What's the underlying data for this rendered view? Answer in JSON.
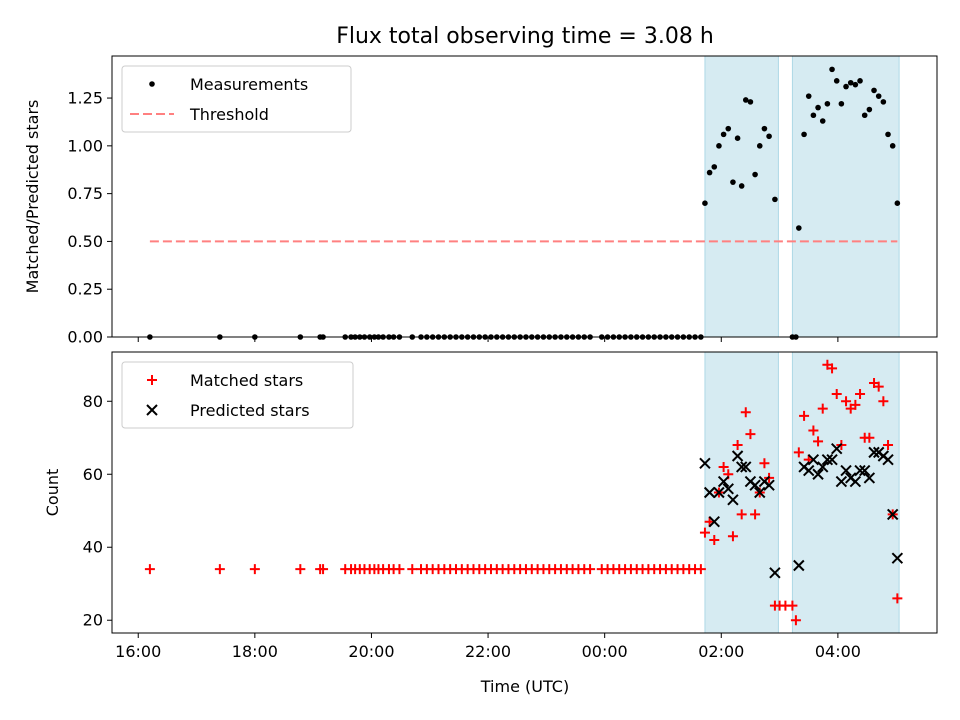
{
  "figure": {
    "title": "Flux total observing time = 3.08 h",
    "xlabel": "Time (UTC)",
    "x_tick_labels": [
      "16:00",
      "18:00",
      "20:00",
      "22:00",
      "00:00",
      "02:00",
      "04:00"
    ],
    "x_tick_values": [
      16,
      18,
      20,
      22,
      24,
      26,
      28
    ],
    "xlim": [
      15.55,
      29.7
    ],
    "shaded_intervals": [
      [
        25.72,
        26.98
      ],
      [
        27.22,
        29.05
      ]
    ],
    "shade_color": "#add8e6"
  },
  "chart_data": [
    {
      "type": "scatter",
      "ylabel": "Matched/Predicted stars",
      "ylim": [
        0,
        1.47
      ],
      "y_tick_values": [
        0,
        0.25,
        0.5,
        0.75,
        1.0,
        1.25
      ],
      "y_tick_labels": [
        "0.00",
        "0.25",
        "0.50",
        "0.75",
        "1.00",
        "1.25"
      ],
      "grid": false,
      "legend_position": "top-left",
      "series": [
        {
          "name": "Measurements",
          "marker": "dot",
          "color": "#000000",
          "points": [
            [
              16.2,
              0
            ],
            [
              17.4,
              0
            ],
            [
              18.0,
              0
            ],
            [
              18.78,
              0
            ],
            [
              19.12,
              0
            ],
            [
              19.17,
              0
            ],
            [
              19.55,
              0
            ],
            [
              19.65,
              0
            ],
            [
              19.72,
              0
            ],
            [
              19.8,
              0
            ],
            [
              19.88,
              0
            ],
            [
              19.97,
              0
            ],
            [
              20.05,
              0
            ],
            [
              20.12,
              0
            ],
            [
              20.2,
              0
            ],
            [
              20.3,
              0
            ],
            [
              20.38,
              0
            ],
            [
              20.48,
              0
            ],
            [
              20.7,
              0
            ],
            [
              20.85,
              0
            ],
            [
              20.95,
              0
            ],
            [
              21.05,
              0
            ],
            [
              21.15,
              0
            ],
            [
              21.25,
              0
            ],
            [
              21.35,
              0
            ],
            [
              21.45,
              0
            ],
            [
              21.55,
              0
            ],
            [
              21.65,
              0
            ],
            [
              21.75,
              0
            ],
            [
              21.85,
              0
            ],
            [
              21.95,
              0
            ],
            [
              22.05,
              0
            ],
            [
              22.15,
              0
            ],
            [
              22.25,
              0
            ],
            [
              22.35,
              0
            ],
            [
              22.45,
              0
            ],
            [
              22.55,
              0
            ],
            [
              22.65,
              0
            ],
            [
              22.75,
              0
            ],
            [
              22.85,
              0
            ],
            [
              22.95,
              0
            ],
            [
              23.05,
              0
            ],
            [
              23.15,
              0
            ],
            [
              23.25,
              0
            ],
            [
              23.35,
              0
            ],
            [
              23.45,
              0
            ],
            [
              23.55,
              0
            ],
            [
              23.65,
              0
            ],
            [
              23.75,
              0
            ],
            [
              23.95,
              0
            ],
            [
              24.05,
              0
            ],
            [
              24.15,
              0
            ],
            [
              24.25,
              0
            ],
            [
              24.35,
              0
            ],
            [
              24.45,
              0
            ],
            [
              24.55,
              0
            ],
            [
              24.65,
              0
            ],
            [
              24.75,
              0
            ],
            [
              24.85,
              0
            ],
            [
              24.95,
              0
            ],
            [
              25.05,
              0
            ],
            [
              25.15,
              0
            ],
            [
              25.25,
              0
            ],
            [
              25.35,
              0
            ],
            [
              25.45,
              0
            ],
            [
              25.55,
              0
            ],
            [
              25.65,
              0
            ],
            [
              25.72,
              0.7
            ],
            [
              25.8,
              0.86
            ],
            [
              25.88,
              0.89
            ],
            [
              25.96,
              1.0
            ],
            [
              26.04,
              1.06
            ],
            [
              26.12,
              1.09
            ],
            [
              26.2,
              0.81
            ],
            [
              26.28,
              1.04
            ],
            [
              26.35,
              0.79
            ],
            [
              26.42,
              1.24
            ],
            [
              26.5,
              1.23
            ],
            [
              26.58,
              0.85
            ],
            [
              26.66,
              1.0
            ],
            [
              26.74,
              1.09
            ],
            [
              26.82,
              1.05
            ],
            [
              26.92,
              0.72
            ],
            [
              27.22,
              0
            ],
            [
              27.28,
              0
            ],
            [
              27.33,
              0.57
            ],
            [
              27.42,
              1.06
            ],
            [
              27.5,
              1.26
            ],
            [
              27.58,
              1.16
            ],
            [
              27.66,
              1.2
            ],
            [
              27.74,
              1.13
            ],
            [
              27.82,
              1.22
            ],
            [
              27.9,
              1.4
            ],
            [
              27.98,
              1.34
            ],
            [
              28.06,
              1.22
            ],
            [
              28.14,
              1.31
            ],
            [
              28.22,
              1.33
            ],
            [
              28.3,
              1.32
            ],
            [
              28.38,
              1.34
            ],
            [
              28.46,
              1.16
            ],
            [
              28.54,
              1.19
            ],
            [
              28.62,
              1.29
            ],
            [
              28.7,
              1.26
            ],
            [
              28.78,
              1.23
            ],
            [
              28.86,
              1.06
            ],
            [
              28.94,
              1.0
            ],
            [
              29.02,
              0.7
            ]
          ]
        },
        {
          "name": "Threshold",
          "marker": "dashed-line",
          "color": "#ff8080",
          "points": [
            [
              16.2,
              0.5
            ],
            [
              29.02,
              0.5
            ]
          ]
        }
      ]
    },
    {
      "type": "scatter",
      "ylabel": "Count",
      "ylim": [
        16.5,
        93.5
      ],
      "y_tick_values": [
        20,
        40,
        60,
        80
      ],
      "y_tick_labels": [
        "20",
        "40",
        "60",
        "80"
      ],
      "grid": false,
      "legend_position": "top-left",
      "series": [
        {
          "name": "Matched stars",
          "marker": "plus",
          "color": "#ff0000",
          "points": [
            [
              16.2,
              34
            ],
            [
              17.4,
              34
            ],
            [
              18.0,
              34
            ],
            [
              18.78,
              34
            ],
            [
              19.12,
              34
            ],
            [
              19.17,
              34
            ],
            [
              19.55,
              34
            ],
            [
              19.65,
              34
            ],
            [
              19.72,
              34
            ],
            [
              19.8,
              34
            ],
            [
              19.88,
              34
            ],
            [
              19.97,
              34
            ],
            [
              20.05,
              34
            ],
            [
              20.12,
              34
            ],
            [
              20.2,
              34
            ],
            [
              20.3,
              34
            ],
            [
              20.38,
              34
            ],
            [
              20.48,
              34
            ],
            [
              20.7,
              34
            ],
            [
              20.85,
              34
            ],
            [
              20.95,
              34
            ],
            [
              21.05,
              34
            ],
            [
              21.15,
              34
            ],
            [
              21.25,
              34
            ],
            [
              21.35,
              34
            ],
            [
              21.45,
              34
            ],
            [
              21.55,
              34
            ],
            [
              21.65,
              34
            ],
            [
              21.75,
              34
            ],
            [
              21.85,
              34
            ],
            [
              21.95,
              34
            ],
            [
              22.05,
              34
            ],
            [
              22.15,
              34
            ],
            [
              22.25,
              34
            ],
            [
              22.35,
              34
            ],
            [
              22.45,
              34
            ],
            [
              22.55,
              34
            ],
            [
              22.65,
              34
            ],
            [
              22.75,
              34
            ],
            [
              22.85,
              34
            ],
            [
              22.95,
              34
            ],
            [
              23.05,
              34
            ],
            [
              23.15,
              34
            ],
            [
              23.25,
              34
            ],
            [
              23.35,
              34
            ],
            [
              23.45,
              34
            ],
            [
              23.55,
              34
            ],
            [
              23.65,
              34
            ],
            [
              23.75,
              34
            ],
            [
              23.95,
              34
            ],
            [
              24.05,
              34
            ],
            [
              24.15,
              34
            ],
            [
              24.25,
              34
            ],
            [
              24.35,
              34
            ],
            [
              24.45,
              34
            ],
            [
              24.55,
              34
            ],
            [
              24.65,
              34
            ],
            [
              24.75,
              34
            ],
            [
              24.85,
              34
            ],
            [
              24.95,
              34
            ],
            [
              25.05,
              34
            ],
            [
              25.15,
              34
            ],
            [
              25.25,
              34
            ],
            [
              25.35,
              34
            ],
            [
              25.45,
              34
            ],
            [
              25.55,
              34
            ],
            [
              25.65,
              34
            ],
            [
              25.72,
              44
            ],
            [
              25.8,
              47
            ],
            [
              25.88,
              42
            ],
            [
              25.96,
              55
            ],
            [
              26.04,
              62
            ],
            [
              26.12,
              60
            ],
            [
              26.2,
              43
            ],
            [
              26.28,
              68
            ],
            [
              26.35,
              49
            ],
            [
              26.42,
              77
            ],
            [
              26.5,
              71
            ],
            [
              26.58,
              49
            ],
            [
              26.66,
              55
            ],
            [
              26.74,
              63
            ],
            [
              26.82,
              59
            ],
            [
              26.92,
              24
            ],
            [
              27.0,
              24
            ],
            [
              27.1,
              24
            ],
            [
              27.22,
              24
            ],
            [
              27.28,
              20
            ],
            [
              27.33,
              66
            ],
            [
              27.42,
              76
            ],
            [
              27.5,
              64
            ],
            [
              27.58,
              72
            ],
            [
              27.66,
              69
            ],
            [
              27.74,
              78
            ],
            [
              27.82,
              90
            ],
            [
              27.9,
              89
            ],
            [
              27.98,
              82
            ],
            [
              28.06,
              68
            ],
            [
              28.14,
              80
            ],
            [
              28.22,
              78
            ],
            [
              28.3,
              79
            ],
            [
              28.38,
              82
            ],
            [
              28.46,
              70
            ],
            [
              28.54,
              70
            ],
            [
              28.62,
              85
            ],
            [
              28.7,
              84
            ],
            [
              28.78,
              80
            ],
            [
              28.86,
              68
            ],
            [
              28.94,
              49
            ],
            [
              29.02,
              26
            ]
          ]
        },
        {
          "name": "Predicted stars",
          "marker": "x",
          "color": "#000000",
          "points": [
            [
              25.72,
              63
            ],
            [
              25.8,
              55
            ],
            [
              25.88,
              47
            ],
            [
              25.96,
              55
            ],
            [
              26.04,
              58
            ],
            [
              26.12,
              56
            ],
            [
              26.2,
              53
            ],
            [
              26.28,
              65
            ],
            [
              26.35,
              62
            ],
            [
              26.42,
              62
            ],
            [
              26.5,
              58
            ],
            [
              26.58,
              57
            ],
            [
              26.66,
              55
            ],
            [
              26.74,
              58
            ],
            [
              26.82,
              57
            ],
            [
              26.92,
              33
            ],
            [
              27.33,
              35
            ],
            [
              27.42,
              62
            ],
            [
              27.5,
              61
            ],
            [
              27.58,
              64
            ],
            [
              27.66,
              60
            ],
            [
              27.74,
              62
            ],
            [
              27.82,
              64
            ],
            [
              27.9,
              64
            ],
            [
              27.98,
              67
            ],
            [
              28.06,
              58
            ],
            [
              28.14,
              61
            ],
            [
              28.22,
              59
            ],
            [
              28.3,
              58
            ],
            [
              28.38,
              61
            ],
            [
              28.46,
              61
            ],
            [
              28.54,
              59
            ],
            [
              28.62,
              66
            ],
            [
              28.7,
              66
            ],
            [
              28.78,
              65
            ],
            [
              28.86,
              64
            ],
            [
              28.94,
              49
            ],
            [
              29.02,
              37
            ]
          ]
        }
      ]
    }
  ]
}
